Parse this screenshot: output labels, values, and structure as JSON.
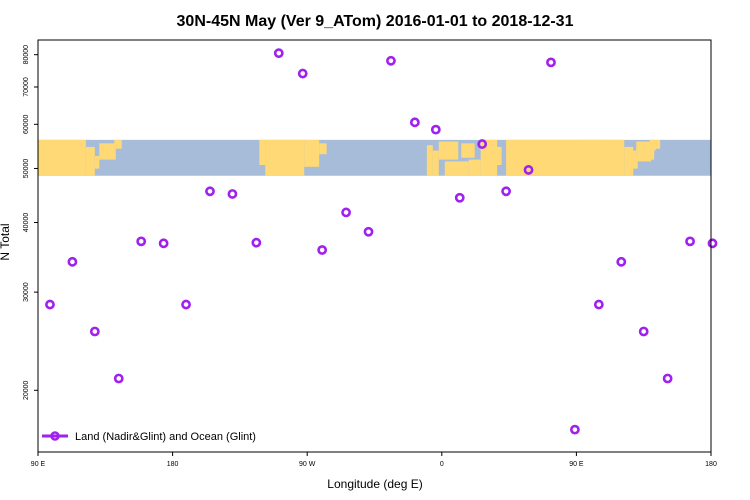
{
  "chart_data": {
    "type": "scatter",
    "title": "30N-45N May (Ver 9_ATom)   2016-01-01 to 2018-12-31",
    "xlabel": "Longitude (deg E)",
    "ylabel": "N Total",
    "x_ticks": [
      {
        "value": 90,
        "label": "90 E"
      },
      {
        "value": 180,
        "label": "180"
      },
      {
        "value": 270,
        "label": "90 W"
      },
      {
        "value": 360,
        "label": "0"
      },
      {
        "value": 450,
        "label": "90 E"
      },
      {
        "value": 540,
        "label": "180"
      }
    ],
    "y_ticks": [
      20000,
      30000,
      40000,
      50000,
      60000,
      70000,
      80000
    ],
    "xlim": [
      90,
      540
    ],
    "ylim": [
      15500,
      85000
    ],
    "y_scale": "log",
    "map_band": {
      "y_min": 48500,
      "y_max": 56300,
      "ocean_color": "#a7bcd9",
      "land_color": "#fed976"
    },
    "series": [
      {
        "name": "Land (Nadir&Glint) and Ocean (Glint)",
        "color": "#a020f0",
        "x": [
          98,
          113,
          128,
          144,
          159,
          174,
          189,
          205,
          220,
          236,
          251,
          267,
          280,
          296,
          311,
          326,
          342,
          356,
          372,
          387,
          403,
          418,
          433,
          449,
          465,
          480,
          495,
          511,
          526,
          541
        ],
        "y": [
          28500,
          34000,
          25500,
          21000,
          37000,
          36700,
          28500,
          45500,
          45000,
          36800,
          80500,
          74000,
          35700,
          41700,
          38500,
          78000,
          60500,
          58700,
          44300,
          55300,
          45500,
          49700,
          77500,
          17000,
          28500,
          34000,
          25500,
          21000,
          37000,
          36700
        ]
      }
    ],
    "legend": {
      "position": "bottom-left",
      "entries": [
        "Land (Nadir&Glint) and Ocean (Glint)"
      ]
    }
  }
}
